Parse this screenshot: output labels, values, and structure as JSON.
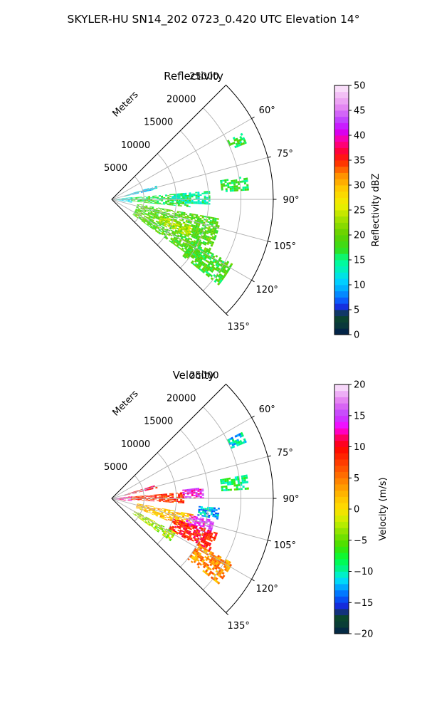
{
  "figure": {
    "title": "SKYLER-HU  SN14_202  0723_0.420 UTC Elevation 14°"
  },
  "chart_data": [
    {
      "type": "heatmap",
      "subtype": "polar-sector-radar",
      "title": "Reflectivity",
      "r_label": "Meters",
      "r_ticks": [
        5000,
        10000,
        15000,
        20000,
        25000
      ],
      "r_tick_labels": [
        "5000",
        "10000",
        "15000",
        "20000",
        "25000"
      ],
      "r_max": 25000,
      "theta_range_deg": [
        45,
        135
      ],
      "theta_ticks_deg": [
        60,
        75,
        90,
        105,
        120,
        135
      ],
      "theta_tick_labels": [
        "60°",
        "75°",
        "90°",
        "105°",
        "120°",
        "135°"
      ],
      "grid": true,
      "colorbar": {
        "label": "Reflectivity dBZ",
        "min": 0,
        "max": 50,
        "ticks": [
          0,
          5,
          10,
          15,
          20,
          25,
          30,
          35,
          40,
          45,
          50
        ],
        "tick_labels": [
          "0",
          "5",
          "10",
          "15",
          "20",
          "25",
          "30",
          "35",
          "40",
          "45",
          "50"
        ],
        "colormap": "NWSRef-like"
      },
      "echo_regions": [
        {
          "az": [
            73,
            77
          ],
          "r": [
            2000,
            7000
          ],
          "value": 11
        },
        {
          "az": [
            84,
            99
          ],
          "r": [
            200,
            3000
          ],
          "value": 12
        },
        {
          "az": [
            85,
            95
          ],
          "r": [
            3000,
            12000
          ],
          "value": 17
        },
        {
          "az": [
            85,
            93
          ],
          "r": [
            9000,
            15000
          ],
          "value": 14
        },
        {
          "az": [
            80,
            86
          ],
          "r": [
            17000,
            21000
          ],
          "value": 17
        },
        {
          "az": [
            63,
            67
          ],
          "r": [
            20000,
            22500
          ],
          "value": 17
        },
        {
          "az": [
            100,
            126
          ],
          "r": [
            4000,
            17000
          ],
          "value": 19
        },
        {
          "az": [
            108,
            116
          ],
          "r": [
            8000,
            13000
          ],
          "value": 24
        },
        {
          "az": [
            118,
            128
          ],
          "r": [
            14000,
            21000
          ],
          "value": 18
        }
      ]
    },
    {
      "type": "heatmap",
      "subtype": "polar-sector-radar",
      "title": "Velocity",
      "r_label": "Meters",
      "r_ticks": [
        5000,
        10000,
        15000,
        20000,
        25000
      ],
      "r_tick_labels": [
        "5000",
        "10000",
        "15000",
        "20000",
        "25000"
      ],
      "r_max": 25000,
      "theta_range_deg": [
        45,
        135
      ],
      "theta_ticks_deg": [
        60,
        75,
        90,
        105,
        120,
        135
      ],
      "theta_tick_labels": [
        "60°",
        "75°",
        "90°",
        "105°",
        "120°",
        "135°"
      ],
      "grid": true,
      "colorbar": {
        "label": "Velocity (m/s)",
        "min": -20,
        "max": 20,
        "ticks": [
          -20,
          -15,
          -10,
          -5,
          0,
          5,
          10,
          15,
          20
        ],
        "tick_labels": [
          "−20",
          "−15",
          "−10",
          "−5",
          "0",
          "5",
          "10",
          "15",
          "20"
        ],
        "colormap": "NWSVel-like"
      },
      "echo_regions": [
        {
          "az": [
            73,
            77
          ],
          "r": [
            2000,
            7000
          ],
          "value": 10
        },
        {
          "az": [
            84,
            99
          ],
          "r": [
            200,
            3000
          ],
          "value": 12
        },
        {
          "az": [
            85,
            94
          ],
          "r": [
            3000,
            11000
          ],
          "value": 8
        },
        {
          "az": [
            83,
            90
          ],
          "r": [
            11000,
            14000
          ],
          "value": 14
        },
        {
          "az": [
            80,
            86
          ],
          "r": [
            17000,
            21000
          ],
          "value": -8
        },
        {
          "az": [
            63,
            67
          ],
          "r": [
            20000,
            22500
          ],
          "value": -11
        },
        {
          "az": [
            95,
            101
          ],
          "r": [
            13500,
            16500
          ],
          "value": -12
        },
        {
          "az": [
            101,
            111
          ],
          "r": [
            4000,
            13000
          ],
          "value": 2
        },
        {
          "az": [
            102,
            110
          ],
          "r": [
            12000,
            16000
          ],
          "value": 15
        },
        {
          "az": [
            108,
            118
          ],
          "r": [
            10000,
            17000
          ],
          "value": 9
        },
        {
          "az": [
            118,
            126
          ],
          "r": [
            4000,
            11000
          ],
          "value": -3
        },
        {
          "az": [
            118,
            128
          ],
          "r": [
            15000,
            21000
          ],
          "value": 4
        }
      ]
    }
  ]
}
